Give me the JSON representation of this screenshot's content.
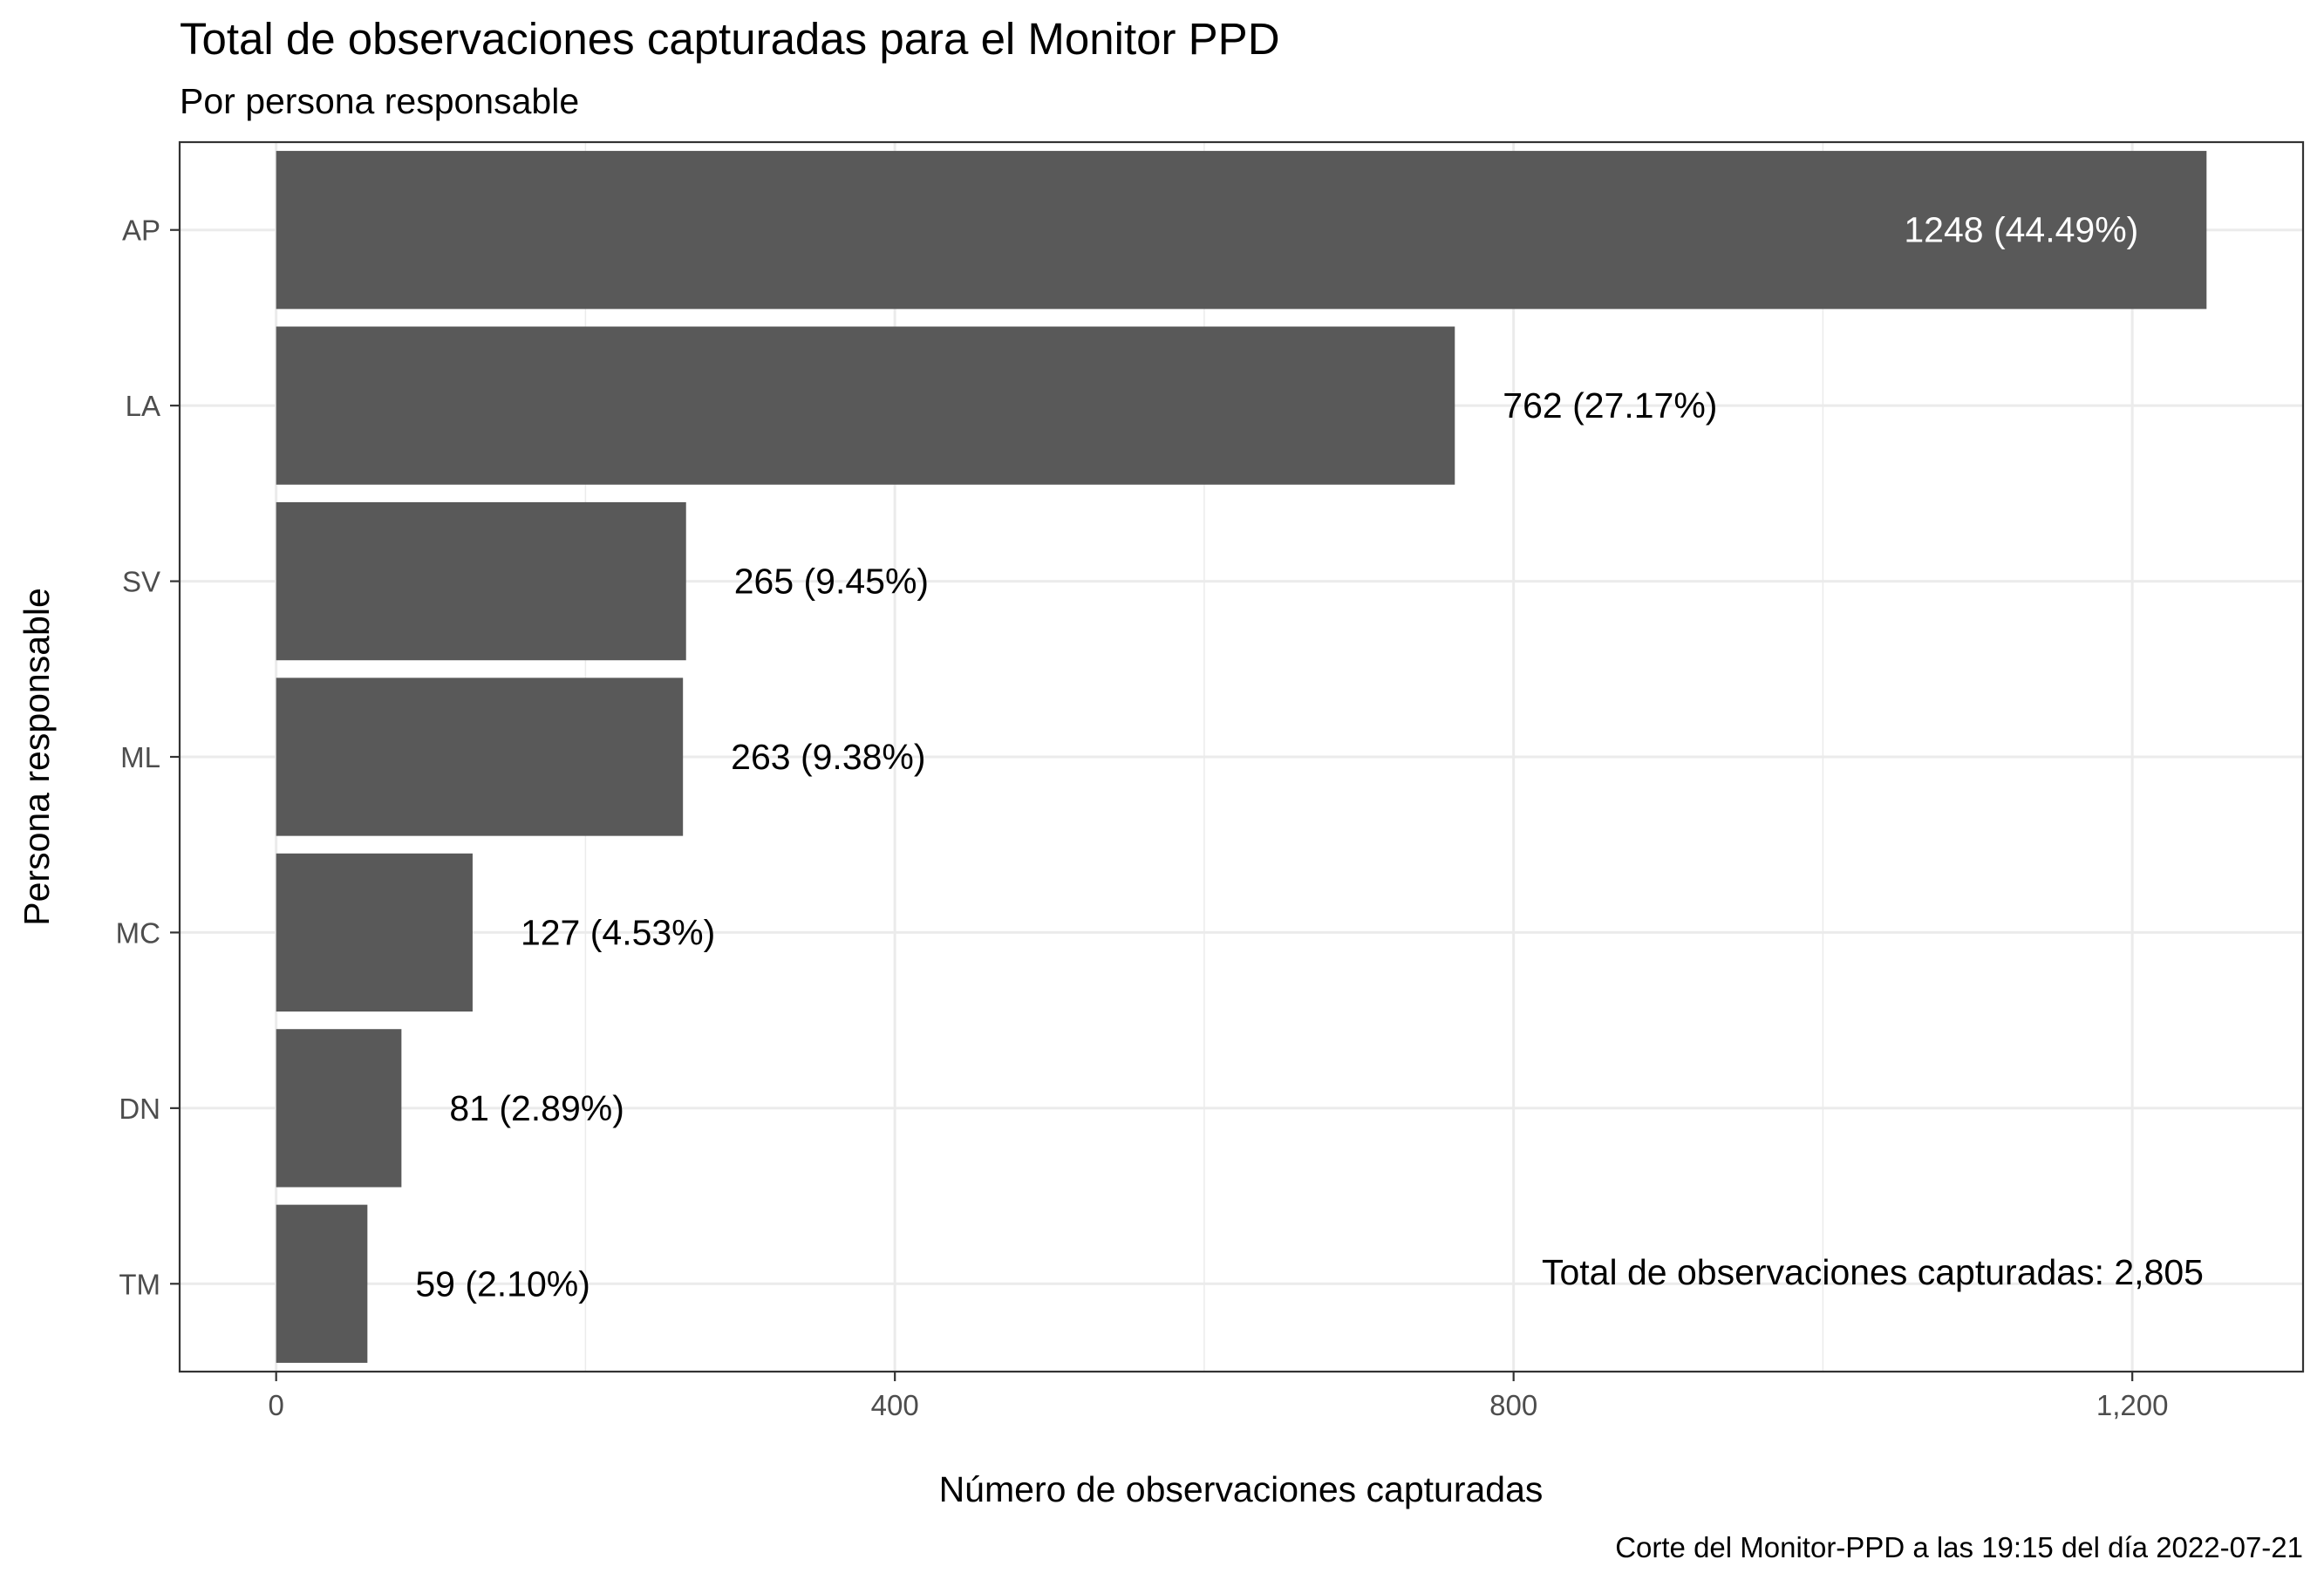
{
  "chart_data": {
    "type": "bar",
    "orientation": "horizontal",
    "title": "Total de observaciones capturadas para el Monitor PPD",
    "subtitle": "Por persona responsable",
    "xlabel": "Número de observaciones capturadas",
    "ylabel": "Persona responsable",
    "categories": [
      "AP",
      "LA",
      "SV",
      "ML",
      "MC",
      "DN",
      "TM"
    ],
    "values": [
      1248,
      762,
      265,
      263,
      127,
      81,
      59
    ],
    "data_labels": [
      "1248 (44.49%)",
      "762 (27.17%)",
      "265 (9.45%)",
      "263 (9.38%)",
      "127 (4.53%)",
      "81 (2.89%)",
      "59 (2.10%)"
    ],
    "xlim": [
      -62.4,
      1310.4
    ],
    "xticks": [
      0,
      400,
      800,
      1200
    ],
    "xtick_labels": [
      "0",
      "400",
      "800",
      "1,200"
    ],
    "grid": true,
    "bar_color": "#595959",
    "annotation": "Total de observaciones capturadas: 2,805",
    "caption": "Corte del Monitor-PPD a las 19:15 del día 2022-07-21"
  }
}
